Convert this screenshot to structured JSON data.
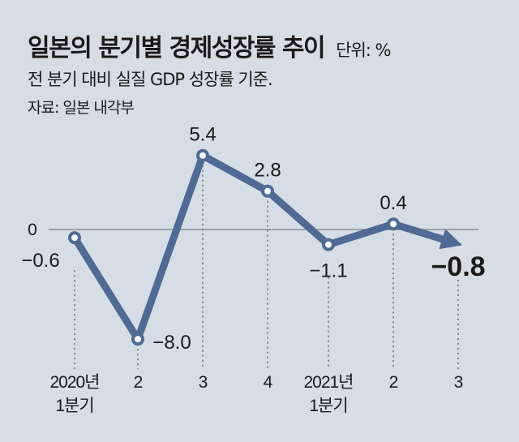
{
  "chart_data": {
    "type": "line",
    "title": "일본의 분기별 경제성장률 추이",
    "unit": "단위: %",
    "subtitle": "전 분기 대비 실질 GDP 성장률 기준.",
    "source": "자료: 일본 내각부",
    "categories": [
      [
        "2020년",
        "1분기"
      ],
      [
        "2"
      ],
      [
        "3"
      ],
      [
        "4"
      ],
      [
        "2021년",
        "1분기"
      ],
      [
        "2"
      ],
      [
        "3"
      ]
    ],
    "values": [
      -0.6,
      -8.0,
      5.4,
      2.8,
      -1.1,
      0.4,
      -0.8
    ],
    "labels": [
      "−0.6",
      "−8.0",
      "5.4",
      "2.8",
      "−1.1",
      "0.4",
      "−0.8"
    ],
    "zero_label": "0",
    "ylim": [
      -8,
      5.4
    ],
    "colors": {
      "line": "#4f6a95",
      "background": "#d6dde4",
      "zero_line": "#8a8f96"
    }
  }
}
